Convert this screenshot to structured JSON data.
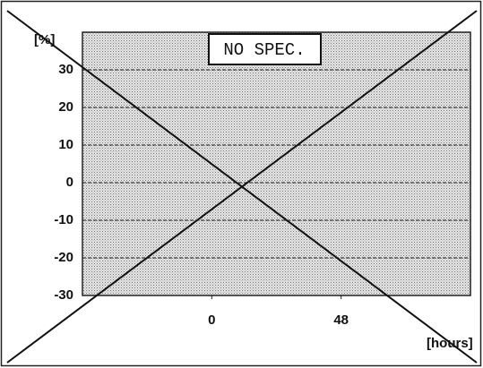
{
  "chart_data": {
    "type": "line",
    "annotation": "NO SPEC.",
    "y_label": "[%]",
    "x_label": "[hours]",
    "xlim": [
      -48,
      96
    ],
    "xticks": [
      0,
      48
    ],
    "ylim": [
      -30,
      40
    ],
    "yticks": [
      -30,
      -20,
      -10,
      0,
      10,
      20,
      30
    ],
    "grid": true
  }
}
